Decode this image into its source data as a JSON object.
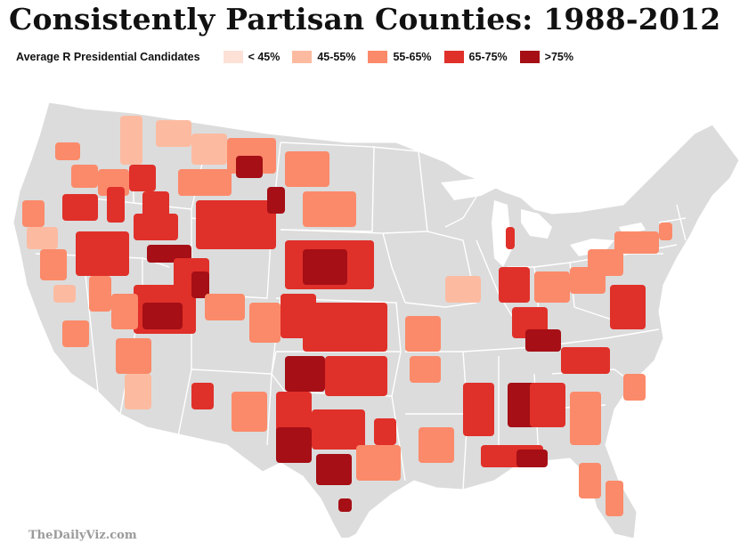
{
  "title": "Consistently Partisan Counties: 1988-2012",
  "legend": {
    "title": "Average R Presidential Candidates",
    "items": [
      {
        "label": "< 45%",
        "color": "#fde0d6"
      },
      {
        "label": "45-55%",
        "color": "#fcbba1"
      },
      {
        "label": "55-65%",
        "color": "#fb8a6a"
      },
      {
        "label": "65-75%",
        "color": "#e0302a"
      },
      {
        "label": ">75%",
        "color": "#a50f15"
      }
    ]
  },
  "map": {
    "base_color": "#dcdcdc",
    "border_color": "#ffffff"
  },
  "credit": "TheDailyViz.com"
}
